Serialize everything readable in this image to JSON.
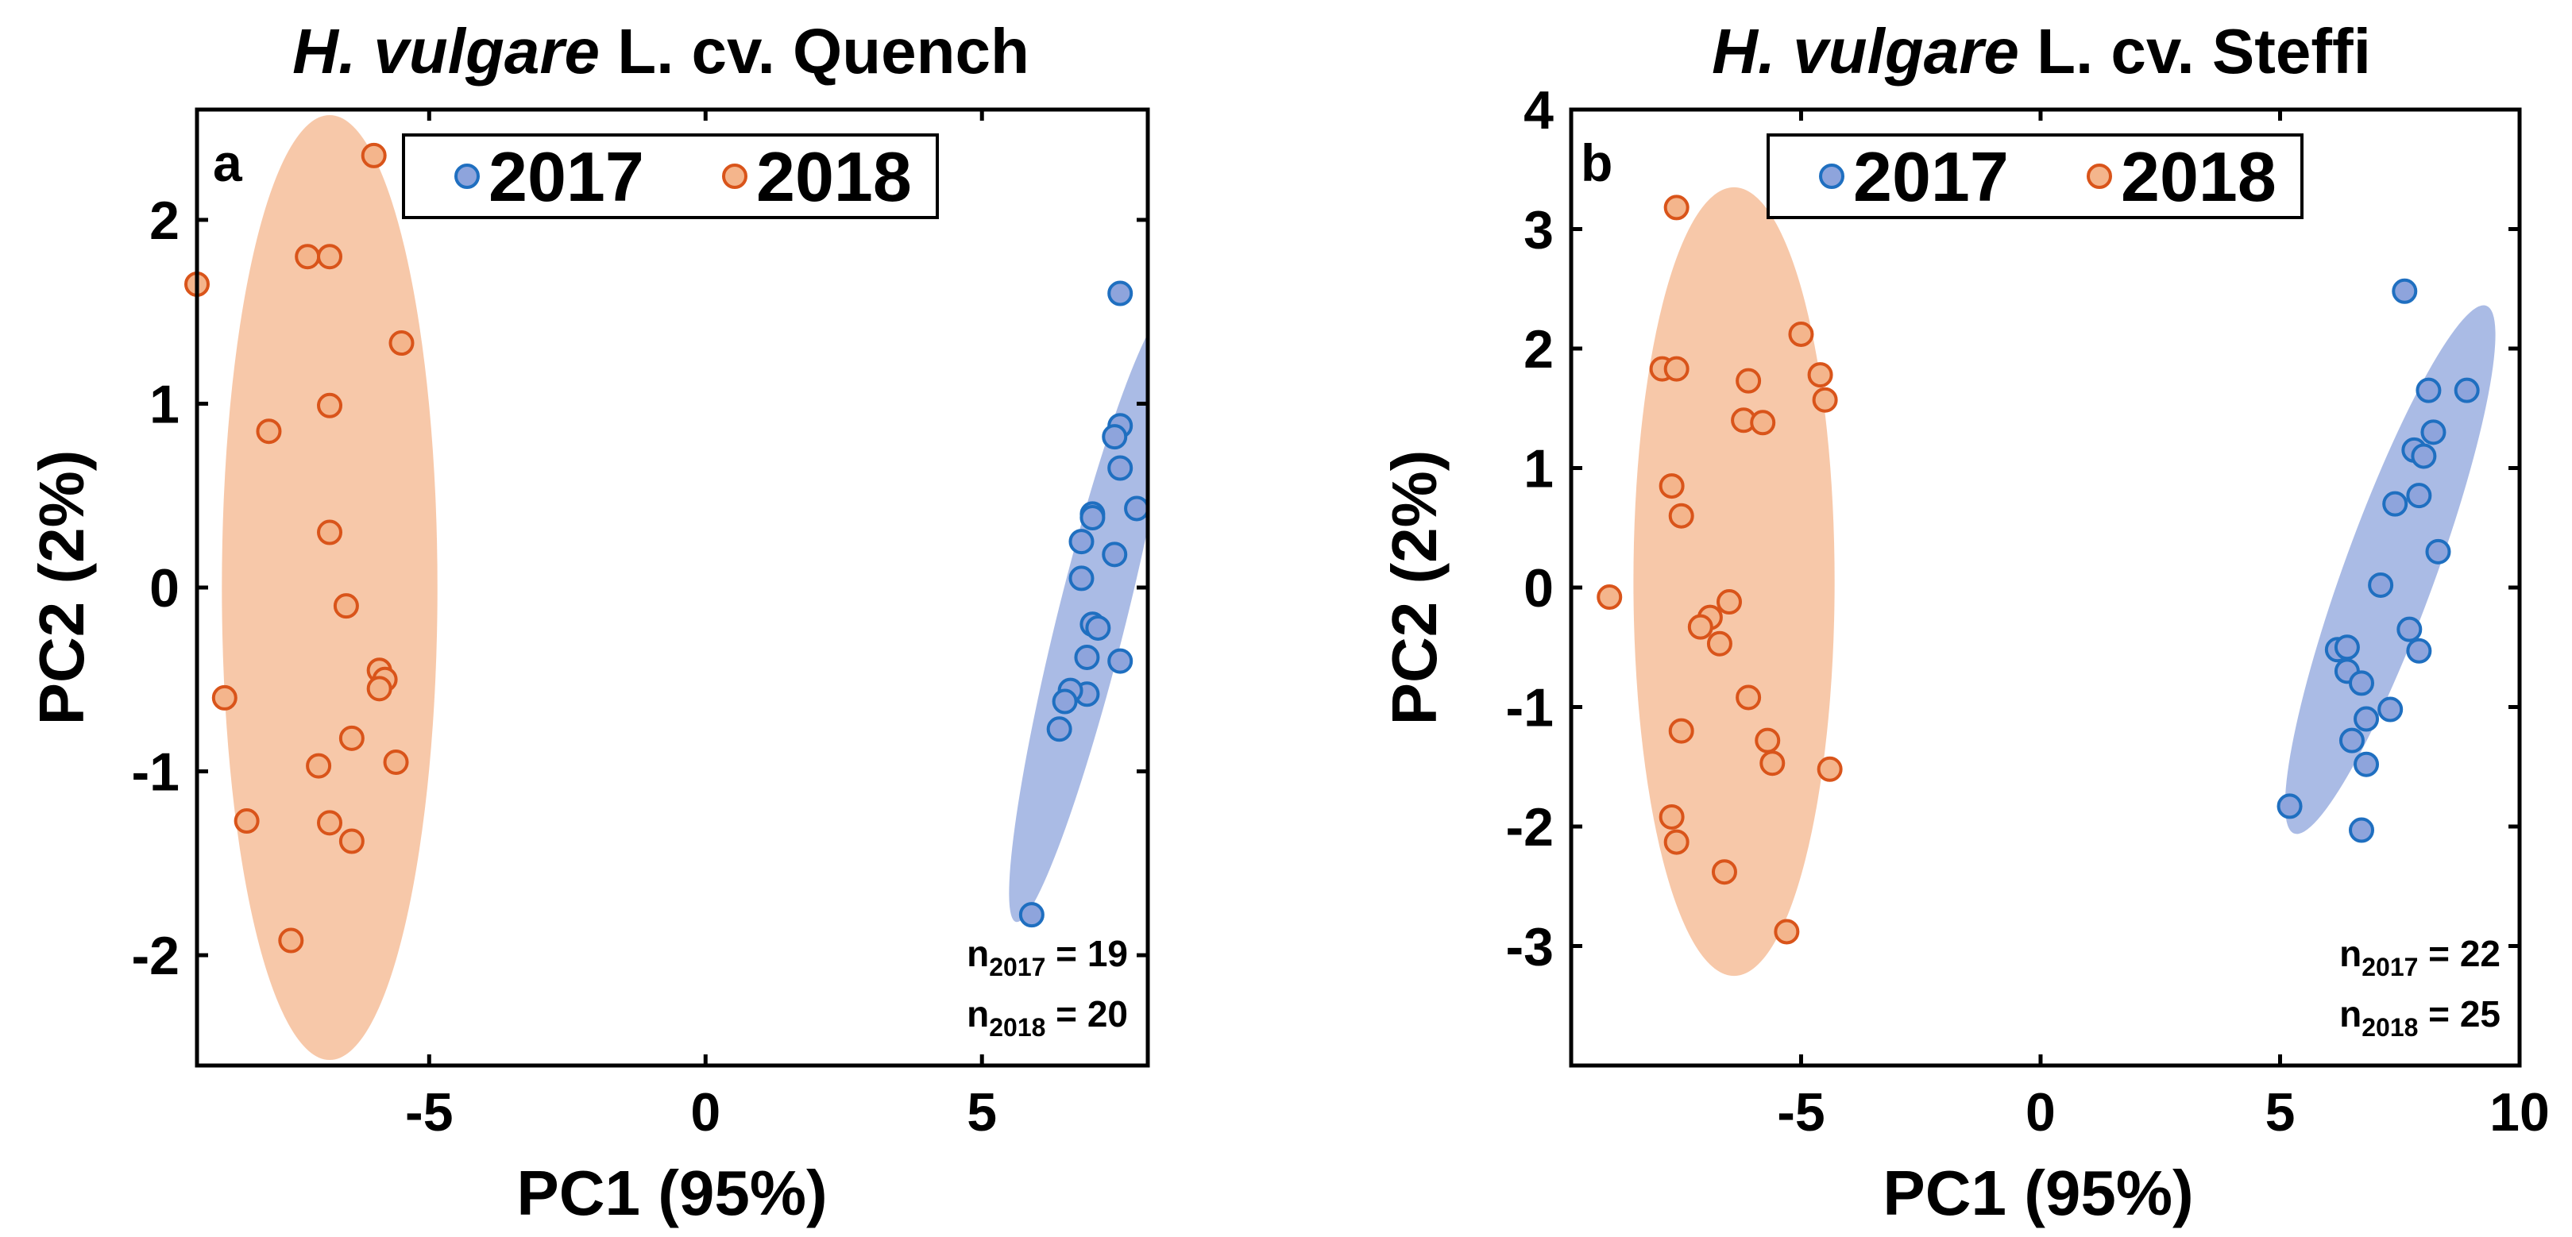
{
  "colors": {
    "series_2017": "#1f6fc0",
    "series_2018": "#d9541a",
    "ellipse_2017": "#8ea4dc",
    "ellipse_2018": "#f4b58c"
  },
  "chart_data": [
    {
      "type": "scatter",
      "panel": "a",
      "title": {
        "italic": "H. vulgare",
        "normal": " L. cv. Quench"
      },
      "xlabel": "PC1 (95%)",
      "ylabel": "PC2 (2%)",
      "xlim": [
        -9.2,
        8
      ],
      "ylim": [
        -2.6,
        2.6
      ],
      "xticks": [
        -5,
        0,
        5
      ],
      "xtick_labels": [
        "-5",
        "0",
        "5"
      ],
      "yticks": [
        -2,
        -1,
        0,
        1,
        2
      ],
      "ytick_labels": [
        "-2",
        "-1",
        "0",
        "1",
        "2"
      ],
      "legend": [
        "2017",
        "2018"
      ],
      "legend_position": "top",
      "counts": [
        {
          "base": "n",
          "sub": "2017",
          "rest": " = 19"
        },
        {
          "base": "n",
          "sub": "2018",
          "rest": " = 20"
        }
      ],
      "ellipses": [
        {
          "series": "2018",
          "cx": -6.8,
          "cy": 0,
          "rx": 1.95,
          "ry": 2.57,
          "angle": 0
        },
        {
          "series": "2017",
          "cx": 7.0,
          "cy": -0.15,
          "rx": 0.62,
          "ry": 1.72,
          "angle": 14
        }
      ],
      "series": [
        {
          "name": "2017",
          "points": [
            [
              7.5,
              1.6
            ],
            [
              7.5,
              0.88
            ],
            [
              7.4,
              0.82
            ],
            [
              7.5,
              0.65
            ],
            [
              7.8,
              0.43
            ],
            [
              7.0,
              0.4
            ],
            [
              7.0,
              0.38
            ],
            [
              6.8,
              0.25
            ],
            [
              7.4,
              0.18
            ],
            [
              6.8,
              0.05
            ],
            [
              7.0,
              -0.2
            ],
            [
              7.1,
              -0.22
            ],
            [
              7.5,
              -0.4
            ],
            [
              6.9,
              -0.38
            ],
            [
              6.9,
              -0.58
            ],
            [
              6.6,
              -0.56
            ],
            [
              6.5,
              -0.62
            ],
            [
              6.4,
              -0.77
            ],
            [
              5.9,
              -1.78
            ]
          ]
        },
        {
          "name": "2018",
          "points": [
            [
              -6.0,
              2.35
            ],
            [
              -9.2,
              1.65
            ],
            [
              -7.2,
              1.8
            ],
            [
              -6.8,
              1.8
            ],
            [
              -5.5,
              1.33
            ],
            [
              -6.8,
              0.99
            ],
            [
              -7.9,
              0.85
            ],
            [
              -6.8,
              0.3
            ],
            [
              -6.5,
              -0.1
            ],
            [
              -5.9,
              -0.45
            ],
            [
              -5.8,
              -0.5
            ],
            [
              -5.9,
              -0.55
            ],
            [
              -8.7,
              -0.6
            ],
            [
              -6.4,
              -0.82
            ],
            [
              -5.6,
              -0.95
            ],
            [
              -7.0,
              -0.97
            ],
            [
              -8.3,
              -1.27
            ],
            [
              -6.8,
              -1.28
            ],
            [
              -6.4,
              -1.38
            ],
            [
              -7.5,
              -1.92
            ]
          ]
        }
      ]
    },
    {
      "type": "scatter",
      "panel": "b",
      "title": {
        "italic": "H. vulgare",
        "normal": " L. cv. Steffi"
      },
      "xlabel": "PC1 (95%)",
      "ylabel": "PC2 (2%)",
      "xlim": [
        -9.8,
        10
      ],
      "ylim": [
        -4,
        4
      ],
      "xticks": [
        -5,
        0,
        5,
        10
      ],
      "xtick_labels": [
        "-5",
        "0",
        "5",
        "10"
      ],
      "yticks": [
        -3,
        -2,
        -1,
        0,
        1,
        2,
        3,
        4
      ],
      "ytick_labels": [
        "-3",
        "-2",
        "-1",
        "0",
        "1",
        "2",
        "3",
        "4"
      ],
      "legend": [
        "2017",
        "2018"
      ],
      "legend_position": "top",
      "counts": [
        {
          "base": "n",
          "sub": "2017",
          "rest": " = 22"
        },
        {
          "base": "n",
          "sub": "2018",
          "rest": " = 25"
        }
      ],
      "ellipses": [
        {
          "series": "2018",
          "cx": -6.4,
          "cy": 0.05,
          "rx": 2.1,
          "ry": 3.3,
          "angle": 0
        },
        {
          "series": "2017",
          "cx": 7.3,
          "cy": 0.15,
          "rx": 0.95,
          "ry": 2.35,
          "angle": 20
        }
      ],
      "series": [
        {
          "name": "2017",
          "points": [
            [
              7.6,
              2.48
            ],
            [
              8.1,
              1.65
            ],
            [
              8.9,
              1.65
            ],
            [
              8.2,
              1.3
            ],
            [
              7.8,
              1.15
            ],
            [
              8.0,
              1.1
            ],
            [
              7.9,
              0.77
            ],
            [
              7.4,
              0.7
            ],
            [
              8.3,
              0.3
            ],
            [
              7.1,
              0.02
            ],
            [
              7.7,
              -0.35
            ],
            [
              6.2,
              -0.52
            ],
            [
              6.4,
              -0.5
            ],
            [
              7.9,
              -0.53
            ],
            [
              6.4,
              -0.7
            ],
            [
              6.7,
              -0.8
            ],
            [
              7.3,
              -1.02
            ],
            [
              6.8,
              -1.1
            ],
            [
              6.5,
              -1.28
            ],
            [
              6.8,
              -1.48
            ],
            [
              5.2,
              -1.83
            ],
            [
              6.7,
              -2.03
            ]
          ]
        },
        {
          "name": "2018",
          "points": [
            [
              -7.6,
              3.18
            ],
            [
              -5.0,
              2.12
            ],
            [
              -7.9,
              1.83
            ],
            [
              -7.6,
              1.83
            ],
            [
              -6.1,
              1.73
            ],
            [
              -4.6,
              1.78
            ],
            [
              -4.5,
              1.57
            ],
            [
              -6.2,
              1.4
            ],
            [
              -5.8,
              1.38
            ],
            [
              -7.7,
              0.85
            ],
            [
              -7.5,
              0.6
            ],
            [
              -9.0,
              -0.08
            ],
            [
              -6.5,
              -0.12
            ],
            [
              -6.9,
              -0.25
            ],
            [
              -7.1,
              -0.33
            ],
            [
              -6.7,
              -0.47
            ],
            [
              -6.1,
              -0.92
            ],
            [
              -7.5,
              -1.2
            ],
            [
              -5.7,
              -1.28
            ],
            [
              -5.6,
              -1.47
            ],
            [
              -4.4,
              -1.52
            ],
            [
              -7.7,
              -1.92
            ],
            [
              -7.6,
              -2.13
            ],
            [
              -6.6,
              -2.38
            ],
            [
              -5.3,
              -2.88
            ]
          ]
        }
      ]
    }
  ]
}
